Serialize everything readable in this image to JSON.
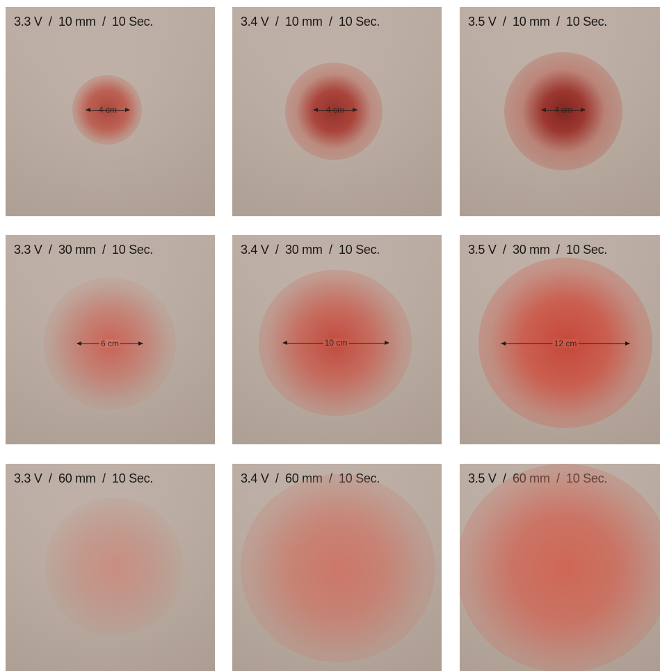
{
  "panels": [
    {
      "label": "3.3 V  /  10 mm  /  10 Sec.",
      "measurement": "4 cm"
    },
    {
      "label": "3.4 V  /  10 mm  /  10 Sec.",
      "measurement": "4 cm"
    },
    {
      "label": "3.5 V  /  10 mm  /  10 Sec.",
      "measurement": "4 cm"
    },
    {
      "label": "3.3 V  /  30 mm  /  10 Sec.",
      "measurement": "6 cm"
    },
    {
      "label": "3.4 V  /  30 mm  /  10 Sec.",
      "measurement": "10 cm"
    },
    {
      "label": "3.5 V  /  30 mm  /  10 Sec.",
      "measurement": "12 cm"
    },
    {
      "label": "3.3 V  /  60 mm  /  10 Sec.",
      "measurement": ""
    },
    {
      "label": "3.4 V  /  60 mm  /  10 Sec.",
      "measurement": ""
    },
    {
      "label": "3.5 V  /  60 mm  /  10 Sec.",
      "measurement": ""
    }
  ],
  "colors": {
    "paper": "#bcada2",
    "stain": "#b8372a",
    "stain_dark": "#7e1d16",
    "ink": "#141414"
  }
}
